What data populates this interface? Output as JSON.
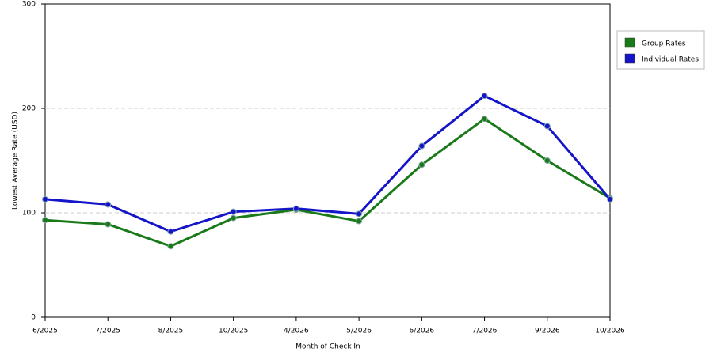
{
  "chart_data": {
    "type": "line",
    "x_label": "Month of Check In",
    "y_label": "Lowest Average Rate (USD)",
    "categories": [
      "6/2025",
      "7/2025",
      "8/2025",
      "10/2025",
      "4/2026",
      "5/2026",
      "6/2026",
      "7/2026",
      "9/2026",
      "10/2026"
    ],
    "series": [
      {
        "name": "Group Rates",
        "color": "#1a7a1a",
        "values": [
          93,
          89,
          68,
          95,
          103,
          92,
          146,
          190,
          150,
          114
        ]
      },
      {
        "name": "Individual Rates",
        "color": "#1414c8",
        "values": [
          113,
          108,
          82,
          101,
          104,
          99,
          164,
          212,
          183,
          113
        ]
      }
    ],
    "ylim": [
      0,
      300
    ],
    "yticks": [
      0,
      100,
      200,
      300
    ],
    "grid": true,
    "legend": "right"
  }
}
